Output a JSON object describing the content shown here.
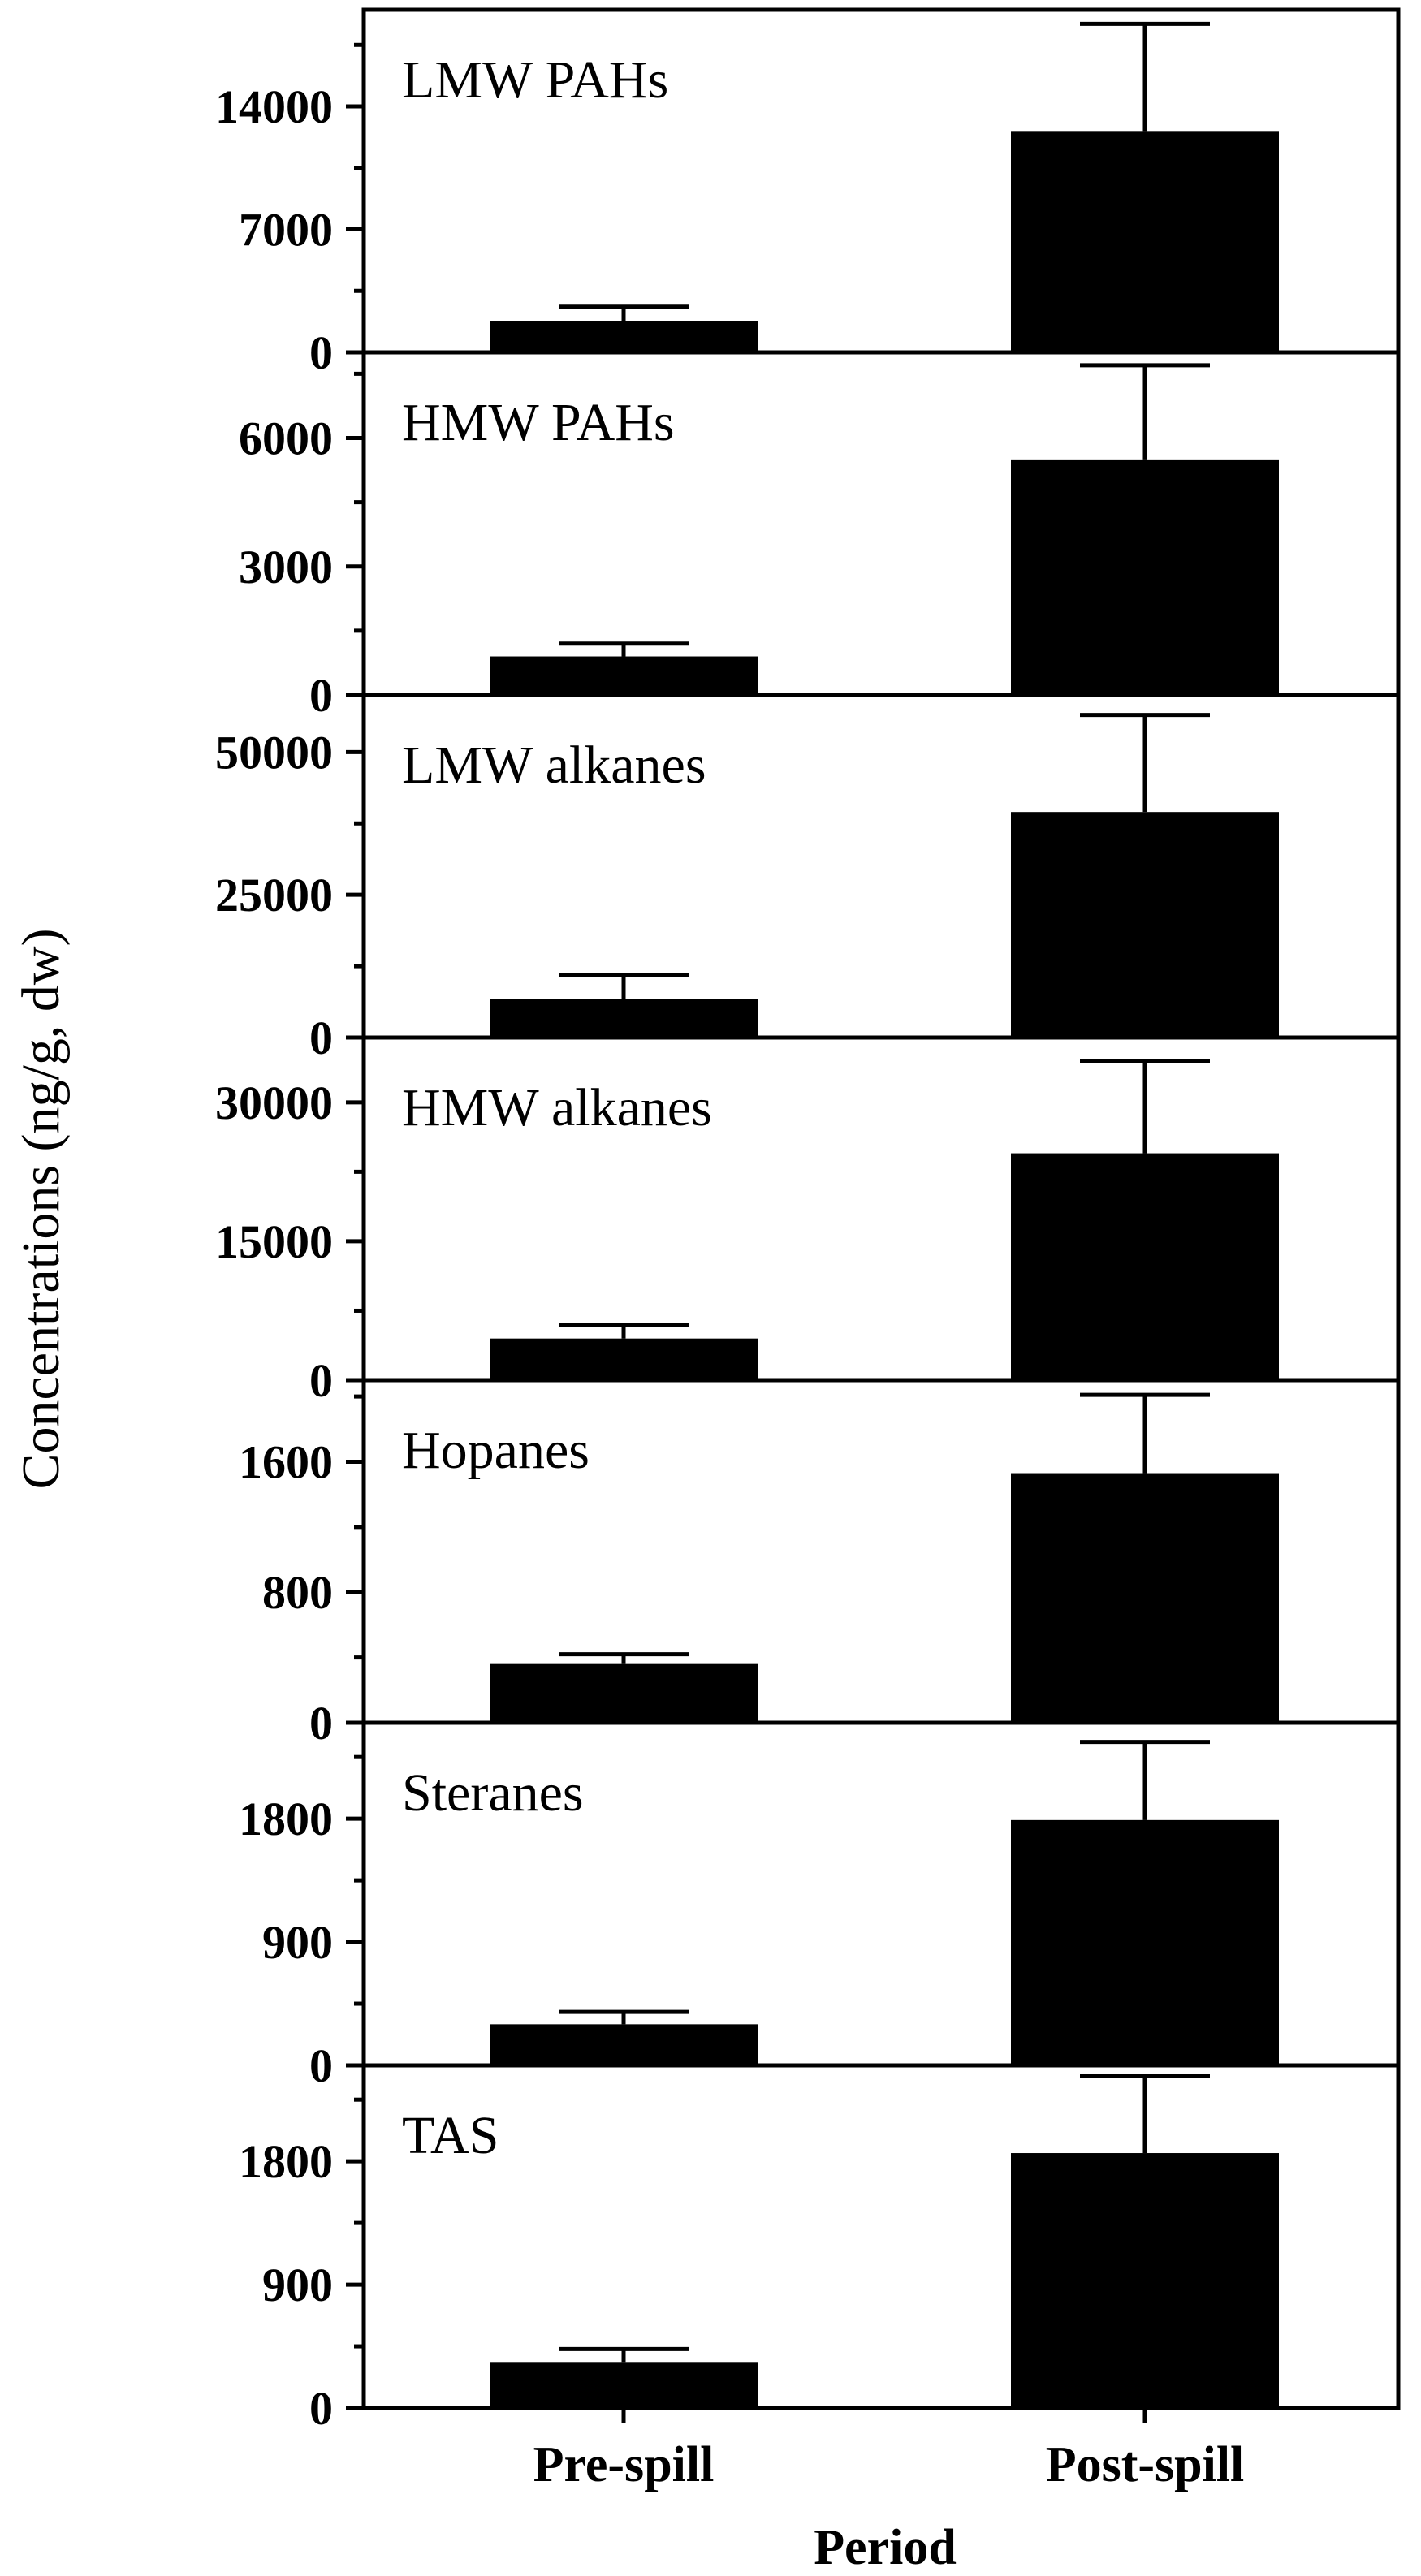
{
  "chart_data": {
    "type": "bar",
    "ylabel": "Concentrations (ng/g, dw)",
    "xlabel": "Period",
    "categories": [
      "Pre-spill",
      "Post-spill"
    ],
    "bar_color": "#000000",
    "panels": [
      {
        "label": "LMW PAHs",
        "ylim": [
          0,
          19500
        ],
        "ticks": [
          0,
          7000,
          14000
        ],
        "values": [
          1800,
          12600
        ],
        "errors": [
          800,
          6100
        ]
      },
      {
        "label": "HMW PAHs",
        "ylim": [
          0,
          8000
        ],
        "ticks": [
          0,
          3000,
          6000
        ],
        "values": [
          900,
          5500
        ],
        "errors": [
          300,
          2200
        ]
      },
      {
        "label": "LMW alkanes",
        "ylim": [
          0,
          60000
        ],
        "ticks": [
          0,
          25000,
          50000
        ],
        "values": [
          6700,
          39500
        ],
        "errors": [
          4300,
          17000
        ]
      },
      {
        "label": "HMW alkanes",
        "ylim": [
          0,
          37000
        ],
        "ticks": [
          0,
          15000,
          30000
        ],
        "values": [
          4500,
          24500
        ],
        "errors": [
          1500,
          10000
        ]
      },
      {
        "label": "Hopanes",
        "ylim": [
          0,
          2100
        ],
        "ticks": [
          0,
          800,
          1600
        ],
        "values": [
          360,
          1530
        ],
        "errors": [
          60,
          480
        ]
      },
      {
        "label": "Steranes",
        "ylim": [
          0,
          2500
        ],
        "ticks": [
          0,
          900,
          1800
        ],
        "values": [
          300,
          1790
        ],
        "errors": [
          90,
          570
        ]
      },
      {
        "label": "TAS",
        "ylim": [
          0,
          2500
        ],
        "ticks": [
          0,
          900,
          1800
        ],
        "values": [
          330,
          1860
        ],
        "errors": [
          100,
          560
        ]
      }
    ]
  }
}
